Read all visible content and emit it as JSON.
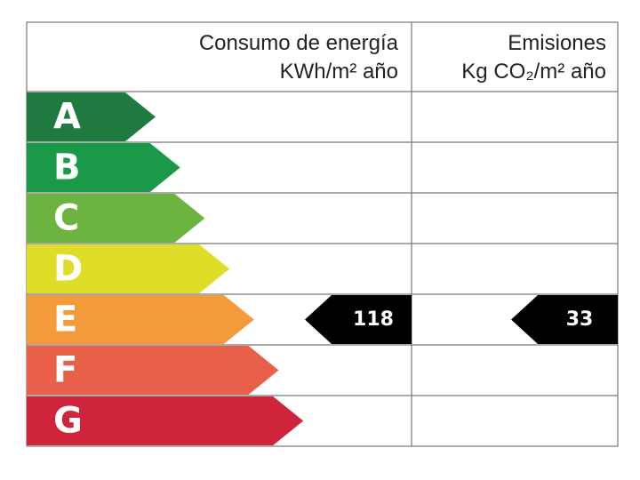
{
  "header": {
    "energy_title": "Consumo de energía",
    "energy_unit": "KWh/m² año",
    "emissions_title": "Emisiones",
    "emissions_unit": "Kg CO₂/m² año"
  },
  "ratings": [
    {
      "label": "A",
      "color": "#1e7a3e"
    },
    {
      "label": "B",
      "color": "#1a9a48"
    },
    {
      "label": "C",
      "color": "#6cb33f"
    },
    {
      "label": "D",
      "color": "#dedd27"
    },
    {
      "label": "E",
      "color": "#f39a3a",
      "energy": 118,
      "emissions": 33
    },
    {
      "label": "F",
      "color": "#e8604a"
    },
    {
      "label": "G",
      "color": "#d0243a"
    }
  ]
}
